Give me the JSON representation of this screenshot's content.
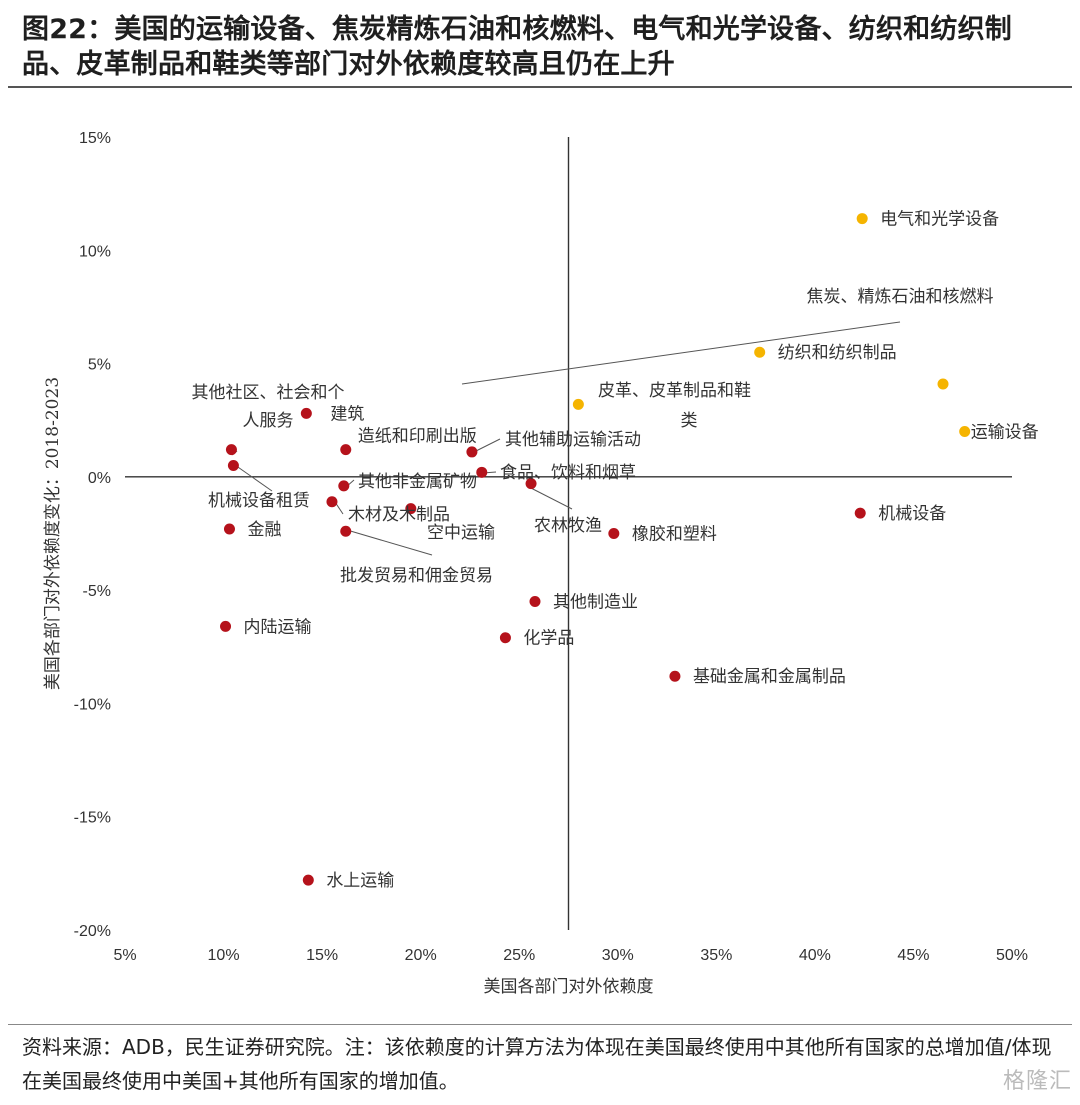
{
  "header": {
    "title": "图22：美国的运输设备、焦炭精炼石油和核燃料、电气和光学设备、纺织和纺织制品、皮革制品和鞋类等部门对外依赖度较高且仍在上升"
  },
  "footer": {
    "note": "资料来源：ADB，民生证券研究院。注：该依赖度的计算方法为体现在美国最终使用中其他所有国家的总增加值/体现在美国最终使用中美国+其他所有国家的增加值。",
    "watermark": "格隆汇"
  },
  "chart_data": {
    "type": "scatter",
    "xlabel": "美国各部门对外依赖度",
    "ylabel": "美国各部门对外依赖度变化：2018-2023",
    "xlim": [
      0.05,
      0.5
    ],
    "ylim": [
      -0.2,
      0.15
    ],
    "xticks": [
      "5%",
      "10%",
      "15%",
      "20%",
      "25%",
      "30%",
      "35%",
      "40%",
      "45%",
      "50%"
    ],
    "yticks": [
      "15%",
      "10%",
      "5%",
      "0%",
      "-5%",
      "-10%",
      "-15%",
      "-20%"
    ],
    "quadrant_x": 0.275,
    "quadrant_y": 0.0,
    "colors": {
      "highlight": "#f5b400",
      "normal": "#b5121b"
    },
    "points": [
      {
        "label": "电气和光学设备",
        "x": 0.424,
        "y": 0.114,
        "highlight": true
      },
      {
        "label": "焦炭、精炼石油和核燃料",
        "x": 0.465,
        "y": 0.041,
        "highlight": true
      },
      {
        "label": "纺织和纺织制品",
        "x": 0.372,
        "y": 0.055,
        "highlight": true
      },
      {
        "label": "皮革、皮革制品和鞋类",
        "x": 0.28,
        "y": 0.032,
        "highlight": true
      },
      {
        "label": "运输设备",
        "x": 0.476,
        "y": 0.02,
        "highlight": true
      },
      {
        "label": "机械设备",
        "x": 0.423,
        "y": -0.016,
        "highlight": false
      },
      {
        "label": "其他社区、社会和个人服务",
        "x": 0.104,
        "y": 0.012,
        "highlight": false
      },
      {
        "label": "建筑",
        "x": 0.142,
        "y": 0.028,
        "highlight": false
      },
      {
        "label": "造纸和印刷出版",
        "x": 0.162,
        "y": 0.012,
        "highlight": false
      },
      {
        "label": "其他辅助运输活动",
        "x": 0.226,
        "y": 0.011,
        "highlight": false
      },
      {
        "label": "机械设备租赁",
        "x": 0.105,
        "y": 0.005,
        "highlight": false
      },
      {
        "label": "其他非金属矿物",
        "x": 0.161,
        "y": -0.004,
        "highlight": false
      },
      {
        "label": "食品、饮料和烟草",
        "x": 0.231,
        "y": 0.002,
        "highlight": false
      },
      {
        "label": "木材及木制品",
        "x": 0.155,
        "y": -0.011,
        "highlight": false
      },
      {
        "label": "空中运输",
        "x": 0.195,
        "y": -0.014,
        "highlight": false
      },
      {
        "label": "农林牧渔",
        "x": 0.256,
        "y": -0.003,
        "highlight": false
      },
      {
        "label": "金融",
        "x": 0.103,
        "y": -0.023,
        "highlight": false
      },
      {
        "label": "批发贸易和佣金贸易",
        "x": 0.162,
        "y": -0.024,
        "highlight": false
      },
      {
        "label": "橡胶和塑料",
        "x": 0.298,
        "y": -0.025,
        "highlight": false
      },
      {
        "label": "其他制造业",
        "x": 0.258,
        "y": -0.055,
        "highlight": false
      },
      {
        "label": "内陆运输",
        "x": 0.101,
        "y": -0.066,
        "highlight": false
      },
      {
        "label": "化学品",
        "x": 0.243,
        "y": -0.071,
        "highlight": false
      },
      {
        "label": "基础金属和金属制品",
        "x": 0.329,
        "y": -0.088,
        "highlight": false
      },
      {
        "label": "水上运输",
        "x": 0.143,
        "y": -0.178,
        "highlight": false
      }
    ]
  }
}
